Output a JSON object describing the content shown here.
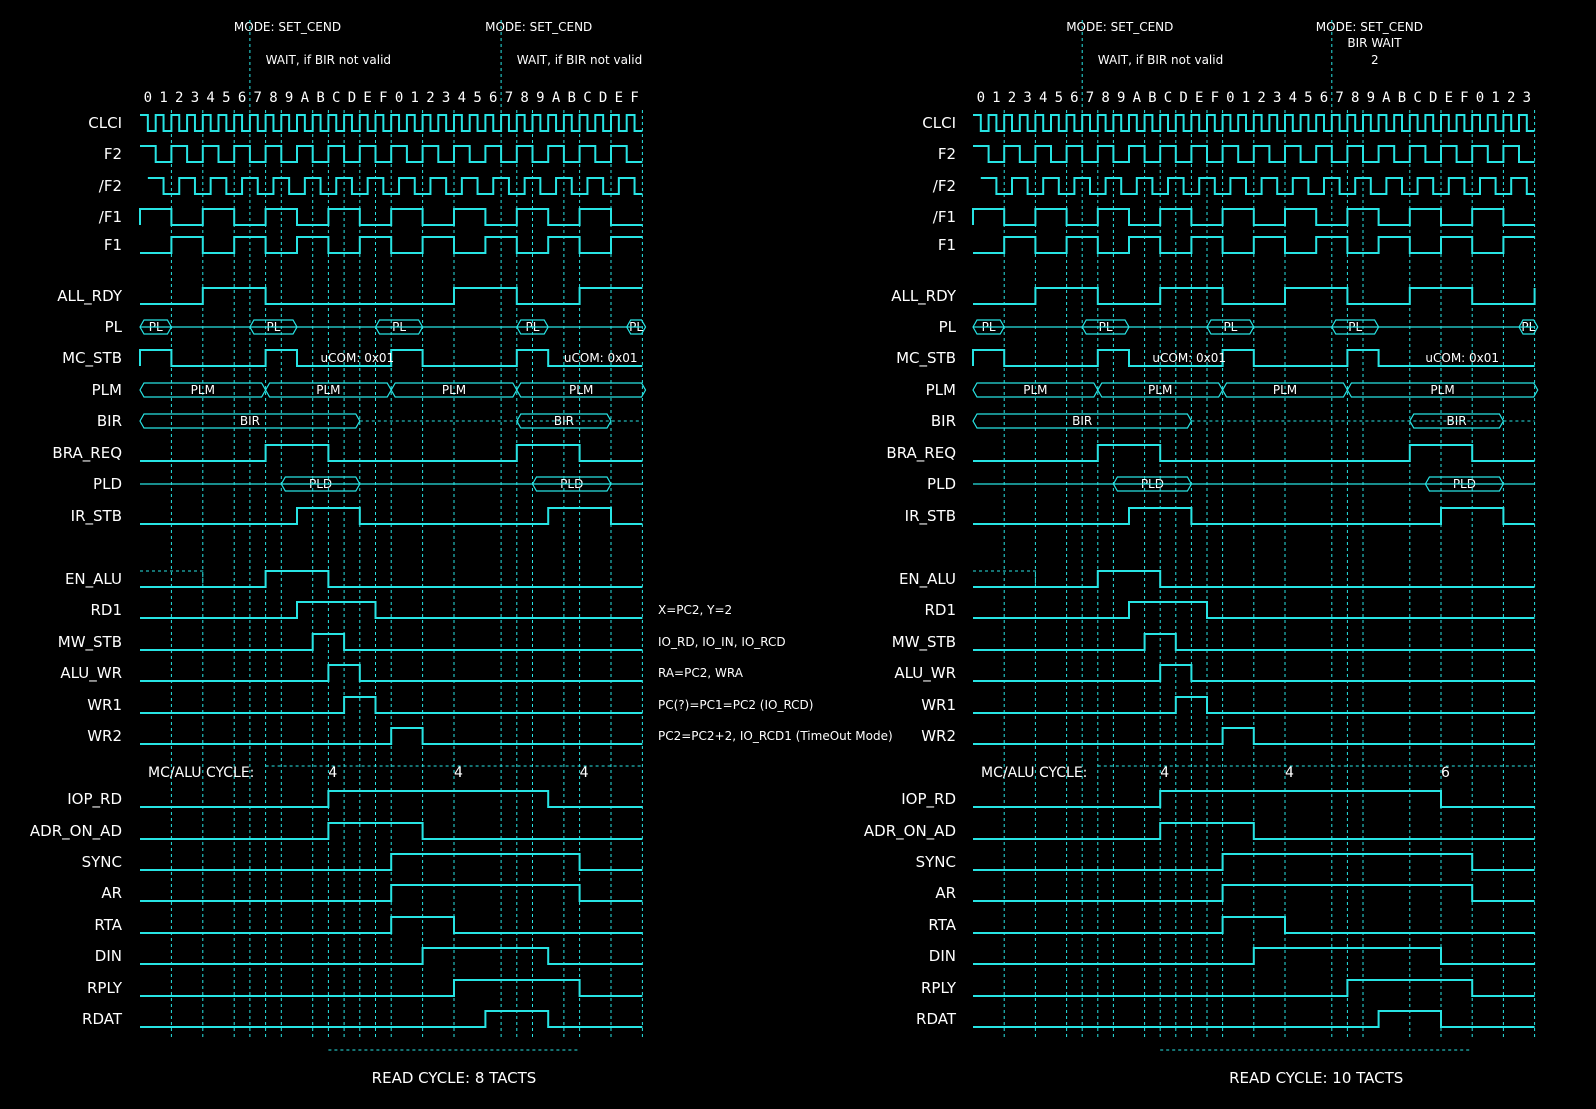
{
  "colors": {
    "background": "#000000",
    "trace": "#27e4e4",
    "text": "#ffffff"
  },
  "signal_names": [
    "CLCI",
    "F2",
    "/F2",
    "/F1",
    "F1",
    "ALL_RDY",
    "PL",
    "MC_STB",
    "PLM",
    "BIR",
    "BRA_REQ",
    "PLD",
    "IR_STB",
    "EN_ALU",
    "RD1",
    "MW_STB",
    "ALU_WR",
    "WR1",
    "WR2",
    "IOP_RD",
    "ADR_ON_AD",
    "SYNC",
    "AR",
    "RTA",
    "DIN",
    "RPLY",
    "RDAT"
  ],
  "cycle_label": "MC/ALU CYCLE:",
  "annotations": [
    "X=PC2, Y=2",
    "IO_RD, IO_IN, IO_RCD",
    "RA=PC2, WRA",
    "PC(?)=PC1=PC2 (IO_RCD)",
    "PC2=PC2+2, IO_RCD1 (TimeOut Mode)"
  ],
  "diagrams": [
    {
      "ticks": [
        "0",
        "1",
        "2",
        "3",
        "4",
        "5",
        "6",
        "7",
        "8",
        "9",
        "A",
        "B",
        "C",
        "D",
        "E",
        "F",
        "0",
        "1",
        "2",
        "3",
        "4",
        "5",
        "6",
        "7",
        "8",
        "9",
        "A",
        "B",
        "C",
        "D",
        "E",
        "F"
      ],
      "top_labels": [
        {
          "text": "MODE: SET_CEND",
          "tick": 7
        },
        {
          "text": "WAIT, if BIR not valid",
          "tick": 8
        },
        {
          "text": "MODE: SET_CEND",
          "tick": 23
        },
        {
          "text": "WAIT, if BIR not valid",
          "tick": 24
        }
      ],
      "bus_labels": {
        "PL": "PL",
        "MC_STB": "uCOM: 0x01",
        "PLM": "PLM",
        "BIR": "BIR",
        "PLD": "PLD"
      },
      "cycle_values": [
        "4",
        "4",
        "4"
      ],
      "bottom_caption": "READ CYCLE: 8 TACTS"
    },
    {
      "ticks": [
        "0",
        "1",
        "2",
        "3",
        "4",
        "5",
        "6",
        "7",
        "8",
        "9",
        "A",
        "B",
        "C",
        "D",
        "E",
        "F",
        "0",
        "1",
        "2",
        "3",
        "4",
        "5",
        "6",
        "7",
        "8",
        "9",
        "A",
        "B",
        "C",
        "D",
        "E",
        "F",
        "0",
        "1",
        "2",
        "3"
      ],
      "top_labels": [
        {
          "text": "MODE: SET_CEND",
          "tick": 7
        },
        {
          "text": "WAIT, if BIR not valid",
          "tick": 8
        },
        {
          "text": "MODE: SET_CEND",
          "tick": 23
        },
        {
          "text": "BIR WAIT",
          "tick": 24
        },
        {
          "text": "2",
          "tick": 25
        }
      ],
      "bus_labels": {
        "PL": "PL",
        "MC_STB": "uCOM: 0x01",
        "PLM": "PLM",
        "BIR": "BIR",
        "PLD": "PLD"
      },
      "cycle_values": [
        "4",
        "4",
        "6"
      ],
      "bottom_caption": "READ CYCLE: 10 TACTS"
    }
  ]
}
